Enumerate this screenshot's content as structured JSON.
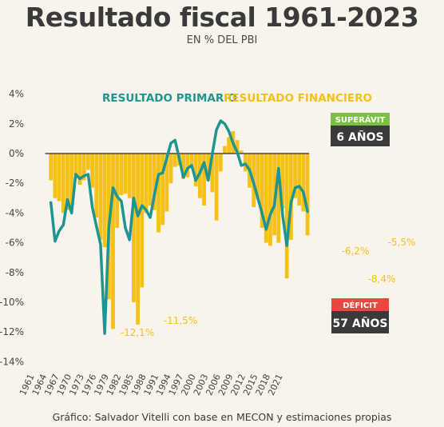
{
  "title": "Resultado fiscal 1961-2023",
  "subtitle": "EN % DEL PBI",
  "source": "Gráfico: Salvador Vitelli con base en MECON y estimaciones propias",
  "colors": {
    "background": "#f8f4ec",
    "primary": "#1f9591",
    "financial": "#f5c018",
    "superavit_badge": "#7ac043",
    "deficit_badge": "#e8483d",
    "dark_badge": "#3a3a3a"
  },
  "legend": {
    "primary_label": "RESULTADO PRIMARIO",
    "financial_label": "RESULTADO FINANCIERO"
  },
  "badges": {
    "superavit_label": "SUPERÁVIT",
    "superavit_value": "6 AÑOS",
    "deficit_label": "DÉFICIT",
    "deficit_value": "57 AÑOS"
  },
  "annotations": [
    "-12,1%",
    "-11,5%",
    "-6,2%",
    "-8,4%",
    "-5,5%"
  ],
  "chart_data": {
    "type": "bar",
    "title": "Resultado fiscal 1961-2023",
    "subtitle": "EN % DEL PBI",
    "x_tick_labels": [
      "1961",
      "1964",
      "1967",
      "1970",
      "1973",
      "1976",
      "1979",
      "1982",
      "1985",
      "1988",
      "1991",
      "1994",
      "1997",
      "2000",
      "2003",
      "2006",
      "2009",
      "2012",
      "2015",
      "2018",
      "2021"
    ],
    "y_tick_labels": [
      "4%",
      "2%",
      "0%",
      "-2%",
      "-4%",
      "-6%",
      "-8%",
      "-10%",
      "-12%",
      "-14%"
    ],
    "ylim": [
      -14,
      4
    ],
    "xlim": [
      1961,
      2021
    ],
    "legend_position": "top-center",
    "grid": false,
    "series": [
      {
        "name": "RESULTADO FINANCIERO",
        "type": "bar",
        "x": [
          1961,
          1962,
          1963,
          1964,
          1965,
          1966,
          1967,
          1968,
          1969,
          1970,
          1971,
          1972,
          1973,
          1974,
          1975,
          1976,
          1977,
          1978,
          1979,
          1980,
          1981,
          1982,
          1983,
          1984,
          1985,
          1986,
          1987,
          1988,
          1989,
          1990,
          1991,
          1992,
          1993,
          1994,
          1995,
          1996,
          1997,
          1998,
          1999,
          2000,
          2001,
          2002,
          2003,
          2004,
          2005,
          2006,
          2007,
          2008,
          2009,
          2010,
          2011,
          2012,
          2013,
          2014,
          2015,
          2016,
          2017,
          2018,
          2019,
          2020,
          2021,
          2022,
          2023
        ],
        "values": [
          -1.8,
          -3.0,
          -3.2,
          -4.0,
          -3.8,
          -3.6,
          -1.4,
          -2.1,
          -1.8,
          -1.1,
          -2.3,
          -4.3,
          -5.8,
          -6.3,
          -9.8,
          -11.8,
          -5.0,
          -2.8,
          -2.7,
          -3.0,
          -10.0,
          -11.5,
          -9.0,
          -4.0,
          -3.5,
          -3.8,
          -5.3,
          -4.8,
          -3.9,
          -2.0,
          -0.9,
          -0.8,
          -1.7,
          -1.6,
          -1.0,
          -2.2,
          -3.0,
          -3.5,
          -1.8,
          -2.6,
          -4.5,
          -1.2,
          0.5,
          1.1,
          1.5,
          0.9,
          0.2,
          -1.2,
          -2.3,
          -3.6,
          -3.1,
          -5.0,
          -6.0,
          -6.2,
          -5.5,
          -6.0,
          -3.7,
          -8.4,
          -5.8,
          -3.0,
          -3.5,
          -3.9,
          -5.5
        ]
      },
      {
        "name": "RESULTADO PRIMARIO",
        "type": "line",
        "x": [
          1961,
          1962,
          1963,
          1964,
          1965,
          1966,
          1967,
          1968,
          1969,
          1970,
          1971,
          1972,
          1973,
          1974,
          1975,
          1976,
          1977,
          1978,
          1979,
          1980,
          1981,
          1982,
          1983,
          1984,
          1985,
          1986,
          1987,
          1988,
          1989,
          1990,
          1991,
          1992,
          1993,
          1994,
          1995,
          1996,
          1997,
          1998,
          1999,
          2000,
          2001,
          2002,
          2003,
          2004,
          2005,
          2006,
          2007,
          2008,
          2009,
          2010,
          2011,
          2012,
          2013,
          2014,
          2015,
          2016,
          2017,
          2018,
          2019,
          2020,
          2021,
          2022,
          2023
        ],
        "values": [
          -3.3,
          -5.9,
          -5.2,
          -4.8,
          -3.1,
          -4.0,
          -1.4,
          -1.7,
          -1.5,
          -1.4,
          -3.6,
          -4.9,
          -6.1,
          -12.1,
          -5.0,
          -2.3,
          -2.9,
          -3.2,
          -5.0,
          -5.8,
          -3.0,
          -4.2,
          -3.5,
          -3.8,
          -4.3,
          -2.8,
          -1.4,
          -1.3,
          -0.3,
          0.7,
          0.9,
          -0.3,
          -1.6,
          -1.0,
          -0.8,
          -1.8,
          -1.3,
          -0.6,
          -1.8,
          0.0,
          1.6,
          2.2,
          2.0,
          1.5,
          0.7,
          0.1,
          -0.8,
          -0.7,
          -1.1,
          -2.0,
          -3.0,
          -4.0,
          -5.1,
          -4.1,
          -3.5,
          -1.0,
          -4.2,
          -6.2,
          -3.3,
          -2.3,
          -2.2,
          -2.6,
          -3.9
        ]
      }
    ]
  }
}
